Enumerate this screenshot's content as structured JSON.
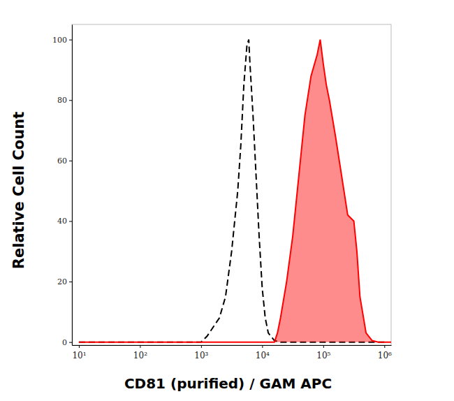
{
  "chart_data": {
    "type": "line",
    "x_label": "CD81 (purified) / GAM APC",
    "y_label": "Relative Cell Count",
    "log": "x",
    "xlim": [
      7.7,
      1290000
    ],
    "ylim": [
      -1,
      105
    ],
    "xticks": [
      {
        "value": 10,
        "label": "10¹"
      },
      {
        "value": 100,
        "label": "10²"
      },
      {
        "value": 1000,
        "label": "10³"
      },
      {
        "value": 10000,
        "label": "10⁴"
      },
      {
        "value": 100000,
        "label": "10⁵"
      },
      {
        "value": 1000000,
        "label": "10⁶"
      }
    ],
    "yticks": [
      0,
      20,
      40,
      60,
      80,
      100
    ],
    "series": [
      {
        "type": "line",
        "color": "#000000",
        "line_style": "dashed",
        "x": [
          10,
          1000,
          1259,
          1585,
          1995,
          2512,
          3162,
          3981,
          4467,
          5012,
          5623,
          6026,
          6310,
          7079,
          7943,
          8913,
          10000,
          11220,
          12589,
          15849,
          19953,
          1000000
        ],
        "values": [
          0,
          0,
          2,
          5,
          8,
          15,
          30,
          50,
          65,
          85,
          98,
          100,
          92,
          75,
          55,
          35,
          18,
          8,
          3,
          0.5,
          0,
          0
        ]
      },
      {
        "type": "area",
        "color": "#ff0000",
        "line_style": "solid",
        "x": [
          10,
          15849,
          17783,
          19953,
          25119,
          31623,
          39811,
          50119,
          63096,
          79433,
          89125,
          100000,
          112202,
          125893,
          158489,
          199526,
          251189,
          316228,
          354813,
          398107,
          501187,
          630957,
          794328,
          1290000
        ],
        "values": [
          0,
          0,
          3,
          8,
          20,
          35,
          55,
          75,
          88,
          95,
          100,
          92,
          85,
          80,
          68,
          55,
          42,
          40,
          30,
          15,
          3,
          0.5,
          0,
          0
        ]
      }
    ]
  }
}
